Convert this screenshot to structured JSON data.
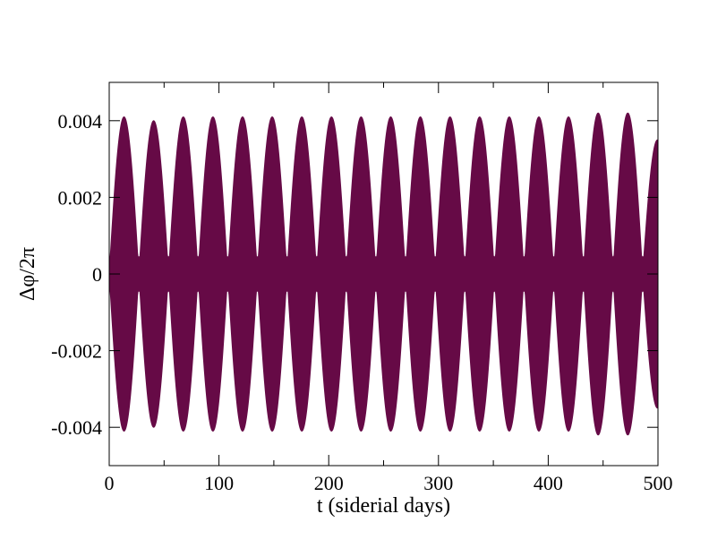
{
  "chart_data": {
    "type": "line",
    "title": "",
    "xlabel": "t (siderial days)",
    "ylabel": "Δφ/2π",
    "xlim": [
      0,
      500
    ],
    "ylim": [
      -0.005,
      0.005
    ],
    "x_ticks": [
      0,
      100,
      200,
      300,
      400,
      500
    ],
    "x_tick_labels": [
      "0",
      "100",
      "200",
      "300",
      "400",
      "500"
    ],
    "y_ticks": [
      -0.004,
      -0.002,
      0,
      0.002,
      0.004
    ],
    "y_tick_labels": [
      "-0.004",
      "-0.002",
      "0",
      "0.002",
      "0.004"
    ],
    "grid": false,
    "legend": "none",
    "series": [
      {
        "color": "#660a46",
        "description_values": {
          "envelope_peak_times": [
            13.5,
            40.5,
            67.5,
            94.5,
            121.5,
            148.5,
            175.5,
            202.5,
            229.5,
            256.5,
            283.5,
            310.5,
            337.5,
            364.5,
            391.5,
            418.5,
            445.5,
            472.5,
            499.5
          ],
          "envelope_peak_amplitudes": [
            0.0041,
            0.004,
            0.0041,
            0.0041,
            0.0041,
            0.0041,
            0.0041,
            0.0041,
            0.0041,
            0.0041,
            0.0041,
            0.0041,
            0.0041,
            0.0041,
            0.0041,
            0.0041,
            0.0042,
            0.0042,
            0.0035
          ],
          "envelope_null_times": [
            0,
            27,
            54,
            81,
            108,
            135,
            162,
            189,
            216,
            243,
            270,
            297,
            324,
            351,
            378,
            405,
            432,
            459,
            486
          ]
        }
      }
    ]
  }
}
